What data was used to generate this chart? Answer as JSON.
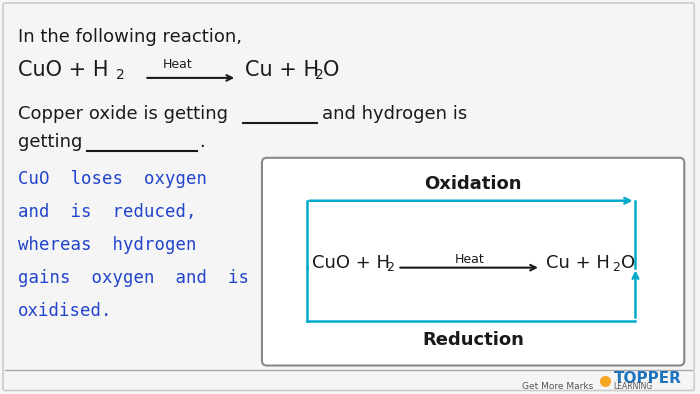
{
  "bg_color": "#f5f5f5",
  "border_color": "#cccccc",
  "text_color_black": "#1a1a1a",
  "text_color_blue": "#2244cc",
  "cyan_color": "#00aacc",
  "line1": "In the following reaction,",
  "heat_label_main": "Heat",
  "box_title": "Oxidation",
  "box_bottom": "Reduction",
  "box_heat": "Heat",
  "topper_orange": "#f5a623",
  "topper_blue": "#1e73be",
  "topper_text": "TOPPER",
  "topper_sub": "LEARNING",
  "topper_tagline": "Get More Marks"
}
